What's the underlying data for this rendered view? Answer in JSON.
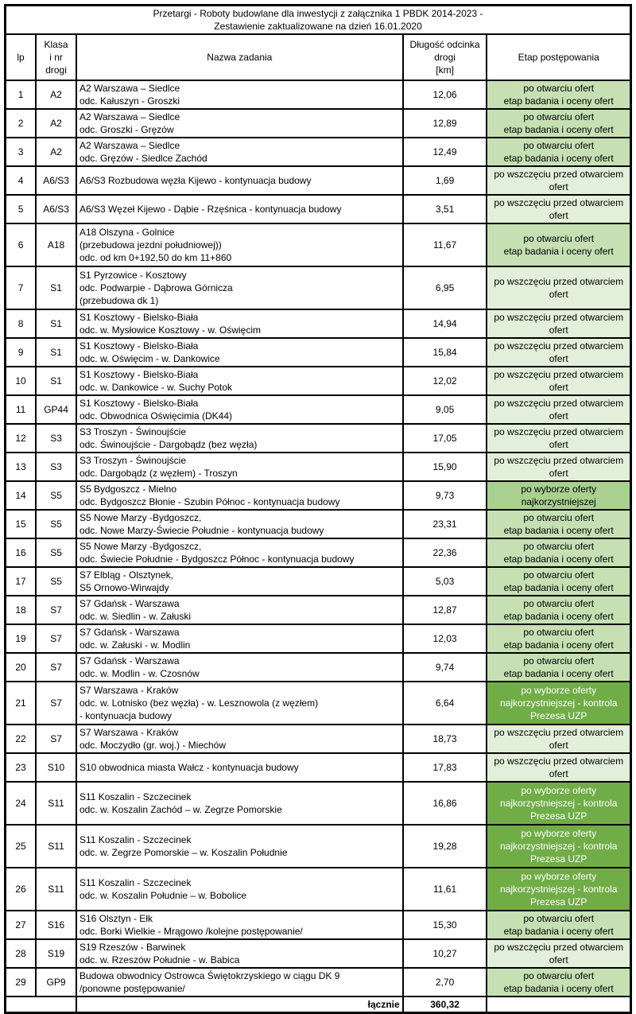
{
  "title": {
    "lines": [
      "Przetargi - Roboty budowlane dla  inwestycji z załącznika 1 PBDK 2014-2023 -",
      "Zestawienie zaktualizowane na dzień 16.01.2020"
    ]
  },
  "header": {
    "lp": "lp",
    "klasa": [
      "Klasa",
      "i nr",
      "drogi"
    ],
    "nazwa": "Nazwa zadania",
    "dlugosc": [
      "Długość odcinka",
      "drogi",
      "[km]"
    ],
    "etap": "Etap postępowania"
  },
  "stages": {
    "started": {
      "label": [
        "po wszczęciu przed otwarciem",
        "ofert"
      ],
      "bg": "#e2efda",
      "fg": "#000000"
    },
    "open": {
      "label": [
        "po otwarciu ofert",
        "etap badania i oceny ofert"
      ],
      "bg": "#c6e0b4",
      "fg": "#000000"
    },
    "selected": {
      "label": [
        "po wyborze oferty",
        "najkorzystniejszej"
      ],
      "bg": "#a9d08e",
      "fg": "#000000"
    },
    "selected_control": {
      "label": [
        "po wyborze oferty",
        "najkorzystniejszej - kontrola",
        "Prezesa UZP"
      ],
      "bg": "#70ad47",
      "fg": "#ffffff"
    }
  },
  "table": {
    "rows": [
      {
        "lp": "1",
        "klasa": "A2",
        "nazwa": [
          "A2 Warszawa – Siedlce",
          "odc. Kałuszyn - Groszki"
        ],
        "dlugosc": "12,06",
        "stage": "open"
      },
      {
        "lp": "2",
        "klasa": "A2",
        "nazwa": [
          "A2 Warszawa – Siedlce",
          "odc. Groszki - Gręzów"
        ],
        "dlugosc": "12,89",
        "stage": "open"
      },
      {
        "lp": "3",
        "klasa": "A2",
        "nazwa": [
          "A2 Warszawa – Siedlce",
          "odc. Gręzów - Siedlce Zachód"
        ],
        "dlugosc": "12,49",
        "stage": "open"
      },
      {
        "lp": "4",
        "klasa": "A6/S3",
        "nazwa": [
          "A6/S3 Rozbudowa węzła Kijewo - kontynuacja budowy"
        ],
        "dlugosc": "1,69",
        "stage": "started"
      },
      {
        "lp": "5",
        "klasa": "A6/S3",
        "nazwa": [
          "A6/S3 Węzeł Kijewo - Dąbie - Rzęśnica - kontynuacja budowy"
        ],
        "dlugosc": "3,51",
        "stage": "started"
      },
      {
        "lp": "6",
        "klasa": "A18",
        "nazwa": [
          "A18 Olszyna - Golnice",
          "(przebudowa jezdni południowej))",
          "odc. od km 0+192,50  do km 11+860"
        ],
        "dlugosc": "11,67",
        "stage": "open"
      },
      {
        "lp": "7",
        "klasa": "S1",
        "nazwa": [
          "S1 Pyrzowice - Kosztowy",
          "odc. Podwarpie - Dąbrowa Górnicza",
          "(przebudowa dk 1)"
        ],
        "dlugosc": "6,95",
        "stage": "started"
      },
      {
        "lp": "8",
        "klasa": "S1",
        "nazwa": [
          "S1 Kosztowy - Bielsko-Biała",
          "odc. w. Mysłowice Kosztowy - w. Oświęcim"
        ],
        "dlugosc": "14,94",
        "stage": "started"
      },
      {
        "lp": "9",
        "klasa": "S1",
        "nazwa": [
          "S1 Kosztowy - Bielsko-Biała",
          "odc. w. Oświęcim - w. Dankowice"
        ],
        "dlugosc": "15,84",
        "stage": "started"
      },
      {
        "lp": "10",
        "klasa": "S1",
        "nazwa": [
          "S1 Kosztowy - Bielsko-Biała",
          "odc. w. Dankowice - w. Suchy Potok"
        ],
        "dlugosc": "12,02",
        "stage": "started"
      },
      {
        "lp": "11",
        "klasa": "GP44",
        "nazwa": [
          "S1 Kosztowy - Bielsko-Biała",
          "odc. Obwodnica Oświęcimia (DK44)"
        ],
        "dlugosc": "9,05",
        "stage": "started"
      },
      {
        "lp": "12",
        "klasa": "S3",
        "nazwa": [
          "S3 Troszyn - Świnoujście",
          "odc. Świnoujście - Dargobądz (bez węzła)"
        ],
        "dlugosc": "17,05",
        "stage": "started"
      },
      {
        "lp": "13",
        "klasa": "S3",
        "nazwa": [
          "S3 Troszyn - Świnoujście",
          "odc. Dargobądz (z węzłem) - Troszyn"
        ],
        "dlugosc": "15,90",
        "stage": "started"
      },
      {
        "lp": "14",
        "klasa": "S5",
        "nazwa": [
          "S5 Bydgoszcz - Mielno",
          "odc. Bydgoszcz Błonie - Szubin Północ - kontynuacja budowy"
        ],
        "dlugosc": "9,73",
        "stage": "selected"
      },
      {
        "lp": "15",
        "klasa": "S5",
        "nazwa": [
          "S5 Nowe Marzy -Bydgoszcz,",
          "odc. Nowe Marzy-Świecie Południe - kontynuacja budowy"
        ],
        "dlugosc": "23,31",
        "stage": "open"
      },
      {
        "lp": "16",
        "klasa": "S5",
        "nazwa": [
          "S5 Nowe Marzy -Bydgoszcz,",
          "odc. Świecie Południe - Bydgoszcz Północ - kontynuacja budowy"
        ],
        "dlugosc": "22,36",
        "stage": "open"
      },
      {
        "lp": "17",
        "klasa": "S5",
        "nazwa": [
          "S7 Elbląg - Olsztynek,",
          "S5 Ornowo-Wirwajdy"
        ],
        "dlugosc": "5,03",
        "stage": "open"
      },
      {
        "lp": "18",
        "klasa": "S7",
        "nazwa": [
          "S7 Gdańsk - Warszawa",
          "odc. w. Siedlin - w. Załuski"
        ],
        "dlugosc": "12,87",
        "stage": "open"
      },
      {
        "lp": "19",
        "klasa": "S7",
        "nazwa": [
          "S7 Gdańsk - Warszawa",
          "odc. w. Załuski - w. Modlin"
        ],
        "dlugosc": "12,03",
        "stage": "open"
      },
      {
        "lp": "20",
        "klasa": "S7",
        "nazwa": [
          "S7 Gdańsk - Warszawa",
          "odc. w. Modlin - w. Czosnów"
        ],
        "dlugosc": "9,74",
        "stage": "open"
      },
      {
        "lp": "21",
        "klasa": "S7",
        "nazwa": [
          "S7 Warszawa - Kraków",
          "odc. w. Lotnisko (bez węzła) - w. Lesznowola (z węzłem)",
          "- kontynuacja budowy"
        ],
        "dlugosc": "6,64",
        "stage": "selected_control"
      },
      {
        "lp": "22",
        "klasa": "S7",
        "nazwa": [
          "S7 Warszawa - Kraków",
          "odc. Moczydło (gr. woj.) - Miechów"
        ],
        "dlugosc": "18,73",
        "stage": "started"
      },
      {
        "lp": "23",
        "klasa": "S10",
        "nazwa": [
          "S10 obwodnica miasta Wałcz - kontynuacja budowy"
        ],
        "dlugosc": "17,83",
        "stage": "started"
      },
      {
        "lp": "24",
        "klasa": "S11",
        "nazwa": [
          "S11 Koszalin - Szczecinek",
          "odc. w. Koszalin Zachód – w. Zegrze Pomorskie"
        ],
        "dlugosc": "16,86",
        "stage": "selected_control"
      },
      {
        "lp": "25",
        "klasa": "S11",
        "nazwa": [
          "S11 Koszalin - Szczecinek",
          "odc. w. Zegrze Pomorskie – w. Koszalin Południe"
        ],
        "dlugosc": "19,28",
        "stage": "selected_control"
      },
      {
        "lp": "26",
        "klasa": "S11",
        "nazwa": [
          "S11 Koszalin - Szczecinek",
          "odc. w. Koszalin Południe – w. Bobolice"
        ],
        "dlugosc": "11,61",
        "stage": "selected_control"
      },
      {
        "lp": "27",
        "klasa": "S16",
        "nazwa": [
          "S16 Olsztyn - Ełk",
          "odc. Borki Wielkie - Mrągowo /kolejne postępowanie/"
        ],
        "dlugosc": "15,30",
        "stage": "open"
      },
      {
        "lp": "28",
        "klasa": "S19",
        "nazwa": [
          "S19 Rzeszów - Barwinek",
          "odc. w. Rzeszów Południe - w. Babica"
        ],
        "dlugosc": "10,27",
        "stage": "started"
      },
      {
        "lp": "29",
        "klasa": "GP9",
        "nazwa": [
          "Budowa obwodnicy Ostrowca Świętokrzyskiego w ciągu DK 9",
          "/ponowne postępowanie/"
        ],
        "dlugosc": "2,70",
        "stage": "open"
      }
    ]
  },
  "footer": {
    "label": "łącznie",
    "total": "360,32"
  }
}
